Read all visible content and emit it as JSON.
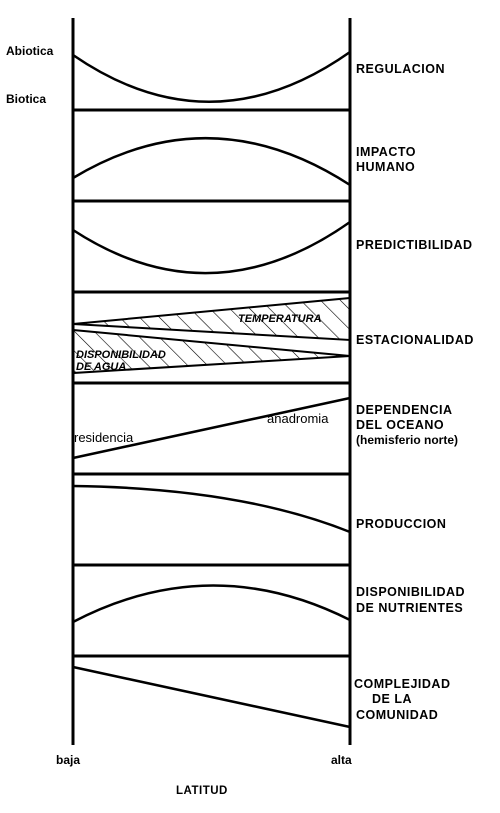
{
  "left_labels": {
    "abiotic": "Abiotica",
    "biotic": "Biotica"
  },
  "panels": [
    {
      "id": "regulacion",
      "label_lines": [
        "REGULACION"
      ]
    },
    {
      "id": "impacto",
      "label_lines": [
        "IMPACTO",
        "HUMANO"
      ]
    },
    {
      "id": "predictibilidad",
      "label_lines": [
        "PREDICTIBILIDAD"
      ]
    },
    {
      "id": "estacionalidad",
      "label_lines": [
        "ESTACIONALIDAD"
      ],
      "inner": {
        "temperatura": "TEMPERATURA",
        "agua_1": "DISPONIBILIDAD",
        "agua_2": "DE AGUA"
      }
    },
    {
      "id": "dependencia",
      "label_lines": [
        "DEPENDENCIA",
        "DEL OCEANO",
        "(hemisferio norte)"
      ],
      "inner": {
        "left": "residencia",
        "right": "anadromia"
      }
    },
    {
      "id": "produccion",
      "label_lines": [
        "PRODUCCION"
      ]
    },
    {
      "id": "nutrientes",
      "label_lines": [
        "DISPONIBILIDAD",
        "DE NUTRIENTES"
      ]
    },
    {
      "id": "complejidad",
      "label_lines": [
        "COMPLEJIDAD",
        "DE LA",
        "COMUNIDAD"
      ]
    }
  ],
  "x_axis": {
    "low": "baja",
    "high": "alta",
    "title": "LATITUD"
  }
}
